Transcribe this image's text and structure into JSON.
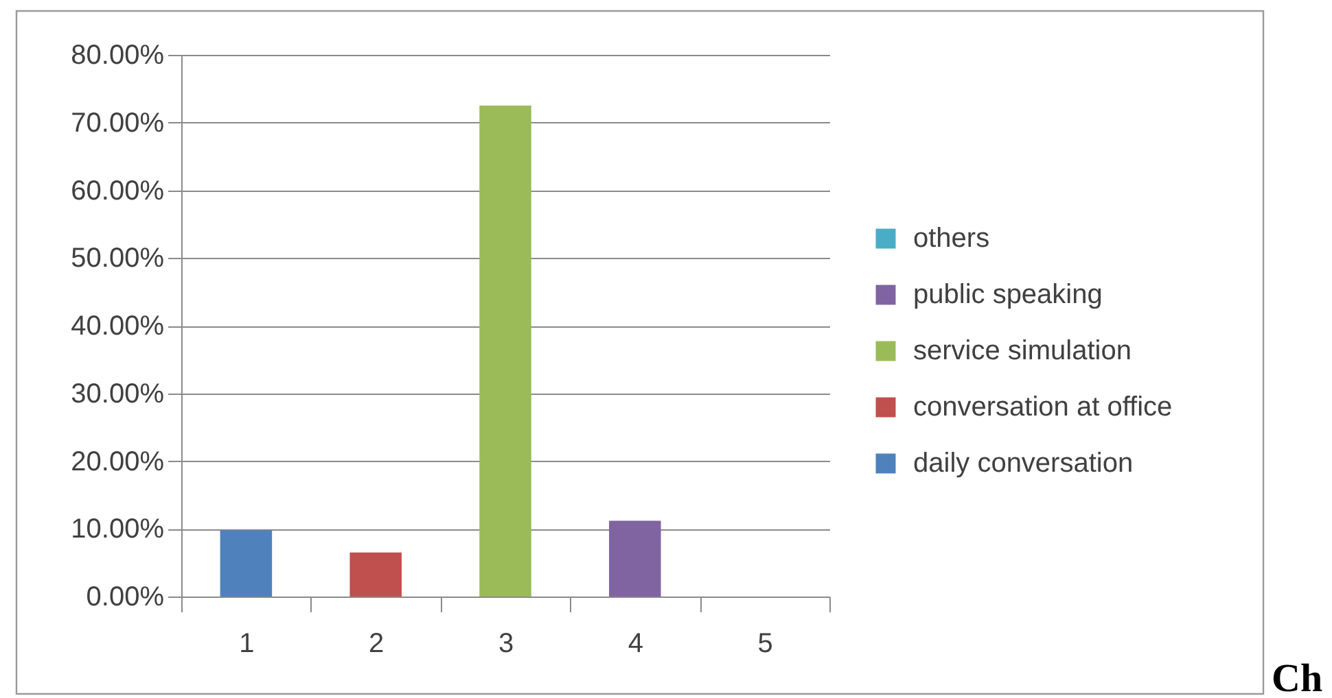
{
  "chart_data": {
    "type": "bar",
    "stacked": true,
    "categories": [
      "1",
      "2",
      "3",
      "4",
      "5"
    ],
    "series": [
      {
        "name": "daily conversation",
        "color": "#4f81bd",
        "values": [
          9.8,
          null,
          null,
          null,
          null
        ]
      },
      {
        "name": "conversation at office",
        "color": "#c0504d",
        "values": [
          null,
          6.5,
          null,
          null,
          null
        ]
      },
      {
        "name": "service simulation",
        "color": "#9bbb59",
        "values": [
          null,
          null,
          72.5,
          null,
          null
        ]
      },
      {
        "name": "public speaking",
        "color": "#8064a2",
        "values": [
          null,
          null,
          null,
          11.2,
          null
        ]
      },
      {
        "name": "others",
        "color": "#4bacc6",
        "values": [
          null,
          null,
          null,
          null,
          0
        ]
      }
    ],
    "ylim": [
      0,
      80
    ],
    "yticks": [
      {
        "value": 0,
        "label": "0.00%"
      },
      {
        "value": 10,
        "label": "10.00%"
      },
      {
        "value": 20,
        "label": "20.00%"
      },
      {
        "value": 30,
        "label": "30.00%"
      },
      {
        "value": 40,
        "label": "40.00%"
      },
      {
        "value": 50,
        "label": "50.00%"
      },
      {
        "value": 60,
        "label": "60.00%"
      },
      {
        "value": 70,
        "label": "70.00%"
      },
      {
        "value": 80,
        "label": "80.00%"
      }
    ],
    "grid": "y",
    "legend": "right",
    "annotations": [
      "Ch"
    ]
  }
}
